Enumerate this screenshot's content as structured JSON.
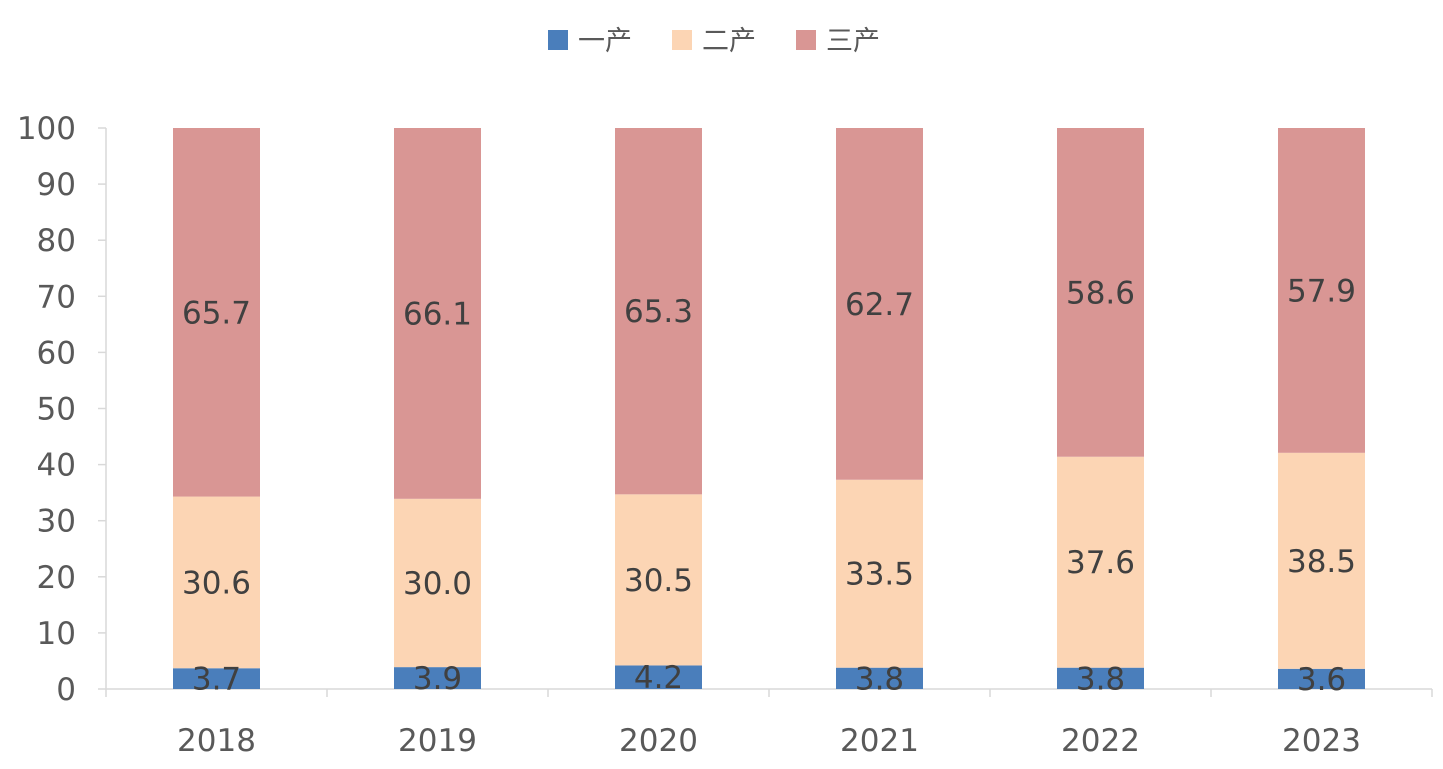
{
  "chart_data": {
    "type": "bar",
    "stacked": true,
    "categories": [
      "2018",
      "2019",
      "2020",
      "2021",
      "2022",
      "2023"
    ],
    "series": [
      {
        "name": "一产",
        "color": "#4a7ebb",
        "values": [
          3.7,
          3.9,
          4.2,
          3.8,
          3.8,
          3.6
        ]
      },
      {
        "name": "二产",
        "color": "#fcd5b4",
        "values": [
          30.6,
          30.0,
          30.5,
          33.5,
          37.6,
          38.5
        ]
      },
      {
        "name": "三产",
        "color": "#d99694",
        "values": [
          65.7,
          66.1,
          65.3,
          62.7,
          58.6,
          57.9
        ]
      }
    ],
    "title": "",
    "xlabel": "",
    "ylabel": "",
    "ylim": [
      0,
      100
    ],
    "yticks": [
      "0",
      "10",
      "20",
      "30",
      "40",
      "50",
      "60",
      "70",
      "80",
      "90",
      "100"
    ],
    "grid": false,
    "legend": "top-center",
    "data_labels": true
  }
}
